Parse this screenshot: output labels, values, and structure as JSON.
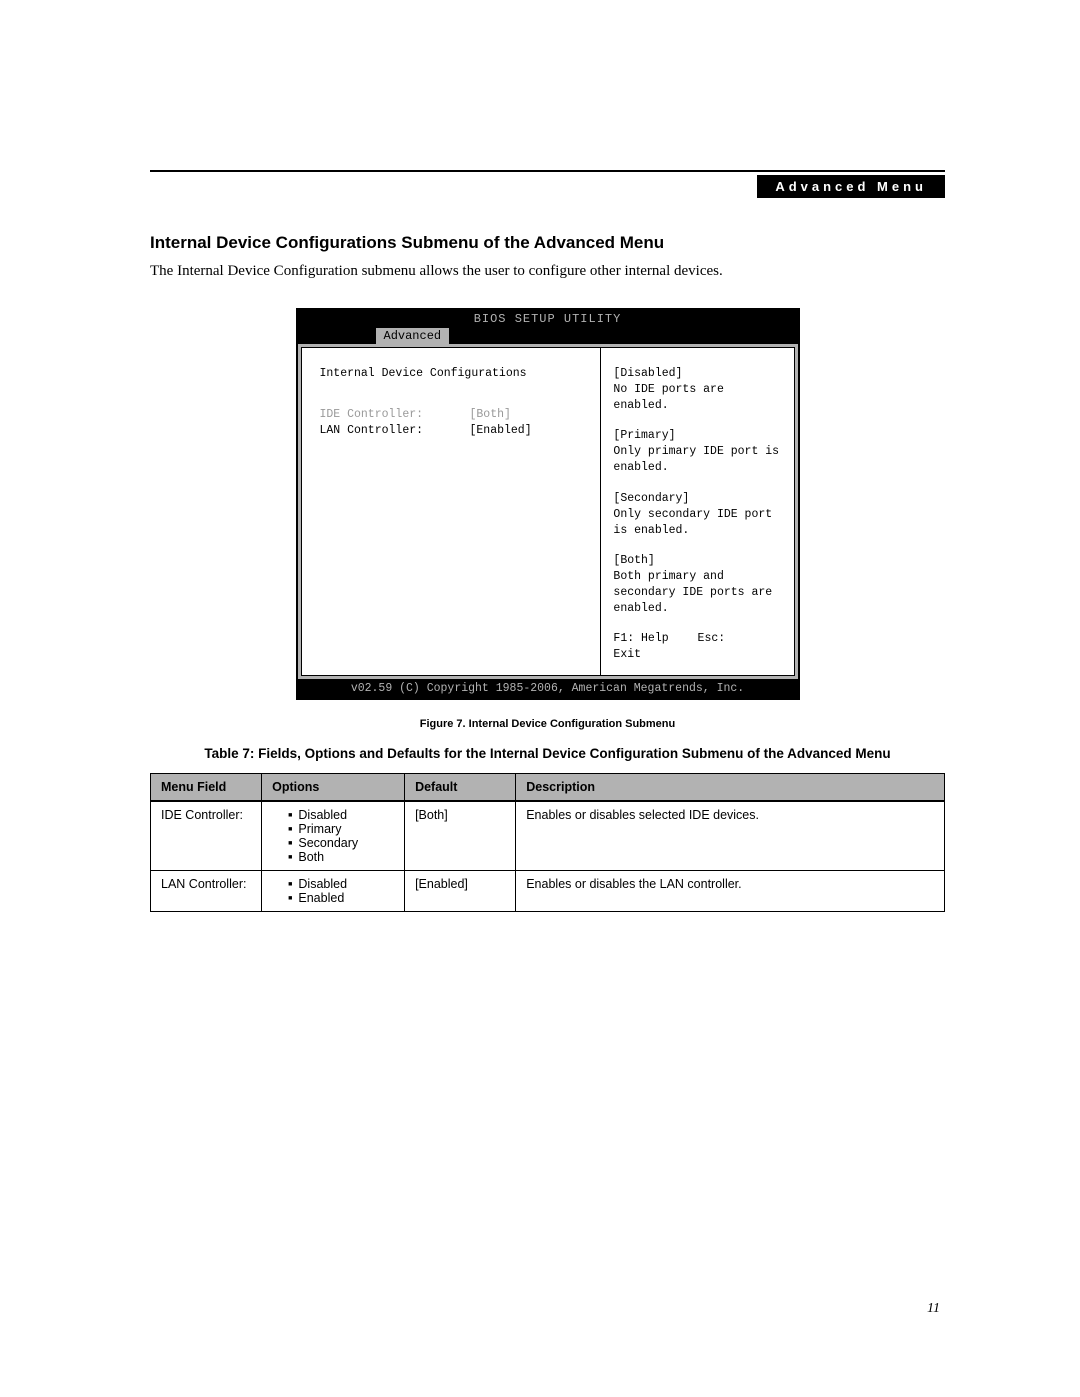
{
  "header": {
    "breadcrumb": "Advanced Menu"
  },
  "section": {
    "title": "Internal Device Configurations Submenu of the Advanced Menu",
    "intro": "The Internal Device Configuration submenu allows the user to configure other internal devices."
  },
  "bios": {
    "title": "BIOS SETUP UTILITY",
    "active_tab": "Advanced",
    "panel_title": "Internal Device Configurations",
    "rows": [
      {
        "label": "IDE Controller:",
        "value": "[Both]",
        "dim": true
      },
      {
        "label": "LAN Controller:",
        "value": "[Enabled]",
        "dim": false
      }
    ],
    "help": [
      {
        "tag": "[Disabled]",
        "text": "No IDE ports are enabled."
      },
      {
        "tag": "[Primary]",
        "text": "Only primary IDE port is enabled."
      },
      {
        "tag": "[Secondary]",
        "text": "Only secondary IDE port is enabled."
      },
      {
        "tag": "[Both]",
        "text": "Both primary and secondary IDE ports are enabled."
      }
    ],
    "help_footer": {
      "f1": "F1: Help",
      "esc": "Esc: Exit"
    },
    "copyright": "v02.59 (C) Copyright 1985-2006, American Megatrends, Inc."
  },
  "figure_caption": "Figure 7.  Internal Device Configuration Submenu",
  "table_caption": "Table 7: Fields, Options and Defaults for the Internal Device Configuration Submenu of the Advanced Menu",
  "table": {
    "columns": [
      "Menu Field",
      "Options",
      "Default",
      "Description"
    ],
    "col_widths": [
      "14%",
      "18%",
      "14%",
      "54%"
    ],
    "rows": [
      {
        "field": "IDE Controller:",
        "options": [
          "Disabled",
          "Primary",
          "Secondary",
          "Both"
        ],
        "default": "[Both]",
        "description": "Enables or disables selected IDE devices."
      },
      {
        "field": "LAN Controller:",
        "options": [
          "Disabled",
          "Enabled"
        ],
        "default": "[Enabled]",
        "description": "Enables or disables the LAN controller."
      }
    ]
  },
  "page_number": "11",
  "colors": {
    "bios_bg": "#b2b2b2",
    "black": "#000000",
    "white": "#ffffff",
    "dim": "#999999"
  }
}
